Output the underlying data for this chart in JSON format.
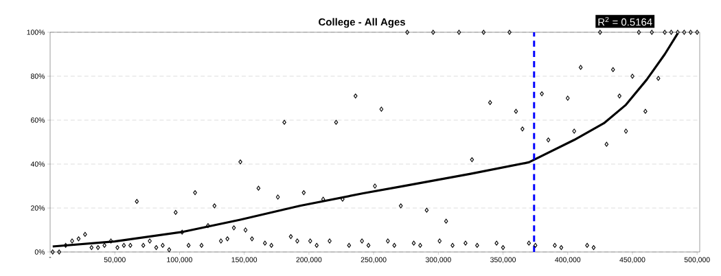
{
  "chart_data": {
    "type": "scatter",
    "title": "College - All Ages",
    "annotations": [
      "R$^{2}$ = 0.5164"
    ],
    "series": [
      {
        "color": "#000000",
        "marker": "diamond",
        "x": [
          2000,
          7000,
          12000,
          17000,
          22000,
          27000,
          32000,
          37000,
          42000,
          47000,
          52000,
          57000,
          62000,
          67000,
          72000,
          77000,
          82000,
          87000,
          92000,
          97000,
          102000,
          107000,
          112000,
          117000,
          122000,
          127000,
          132000,
          137000,
          142000,
          147000,
          151000,
          156000,
          161000,
          166000,
          171000,
          176000,
          181000,
          186000,
          191000,
          196000,
          201000,
          206000,
          211000,
          216000,
          221000,
          226000,
          231000,
          236000,
          241000,
          246000,
          251000,
          256000,
          261000,
          266000,
          271000,
          276000,
          281000,
          286000,
          291000,
          296000,
          301000,
          306000,
          311000,
          316000,
          321000,
          326000,
          330000,
          335000,
          340000,
          345000,
          350000,
          355000,
          360000,
          365000,
          370000,
          375000,
          380000,
          385000,
          390000,
          395000,
          400000,
          405000,
          410000,
          415000,
          420000,
          425000,
          430000,
          435000,
          440000,
          445000,
          450000,
          455000,
          460000,
          465000,
          470000,
          475000,
          480000,
          485000,
          490000,
          495000,
          500000
        ],
        "values": [
          0,
          0,
          3,
          5,
          6,
          8,
          2,
          2,
          3,
          5,
          2,
          3,
          3,
          23,
          3,
          5,
          2,
          3,
          1,
          18,
          9,
          3,
          27,
          3,
          12,
          21,
          5,
          6,
          11,
          41,
          10,
          6,
          29,
          4,
          3,
          25,
          59,
          7,
          5,
          27,
          5,
          3,
          24,
          5,
          59,
          24,
          3,
          71,
          5,
          3,
          30,
          65,
          5,
          3,
          21,
          100,
          4,
          3,
          19,
          100,
          5,
          14,
          3,
          100,
          4,
          42,
          3,
          100,
          68,
          4,
          2,
          100,
          64,
          56,
          4,
          3,
          72,
          51,
          3,
          2,
          70,
          55,
          84,
          3,
          2,
          100,
          49,
          83,
          71,
          55,
          80,
          100,
          64,
          100,
          79,
          100,
          100,
          100,
          100,
          100,
          100
        ]
      },
      {
        "type": "line",
        "color": "#000000",
        "marker": "none",
        "x": [
          2000,
          50000,
          103000,
          147000,
          193000,
          242000,
          272000,
          325000,
          370000,
          405000,
          428000,
          445000,
          461000,
          475000,
          485000
        ],
        "values": [
          2.5,
          4.8,
          9.2,
          14.7,
          21,
          26.7,
          29.9,
          35.6,
          40.8,
          51,
          58.6,
          67,
          78.4,
          90,
          99.5
        ]
      }
    ],
    "xlim": [
      0,
      502000
    ],
    "xticks": [
      {
        "value": 0,
        "label": "-"
      },
      {
        "value": 50000,
        "label": "50,000"
      },
      {
        "value": 100000,
        "label": "100,000"
      },
      {
        "value": 150000,
        "label": "150,000"
      },
      {
        "value": 200000,
        "label": "200,000"
      },
      {
        "value": 250000,
        "label": "250,000"
      },
      {
        "value": 300000,
        "label": "300,000"
      },
      {
        "value": 350000,
        "label": "350,000"
      },
      {
        "value": 400000,
        "label": "400,000"
      },
      {
        "value": 450000,
        "label": "450,000"
      },
      {
        "value": 500000,
        "label": "500,000"
      }
    ],
    "ylim": [
      0,
      100
    ],
    "yticks": [
      {
        "value": 0,
        "label": "0%"
      },
      {
        "value": 20,
        "label": "20%"
      },
      {
        "value": 40,
        "label": "40%"
      },
      {
        "value": 60,
        "label": "60%"
      },
      {
        "value": 80,
        "label": "80%"
      },
      {
        "value": 100,
        "label": "100%"
      }
    ],
    "ref_lines": [
      {
        "axis": "x",
        "value": 374000,
        "color": "#0000ff",
        "line_style": "dashed"
      }
    ],
    "grid": "y"
  }
}
